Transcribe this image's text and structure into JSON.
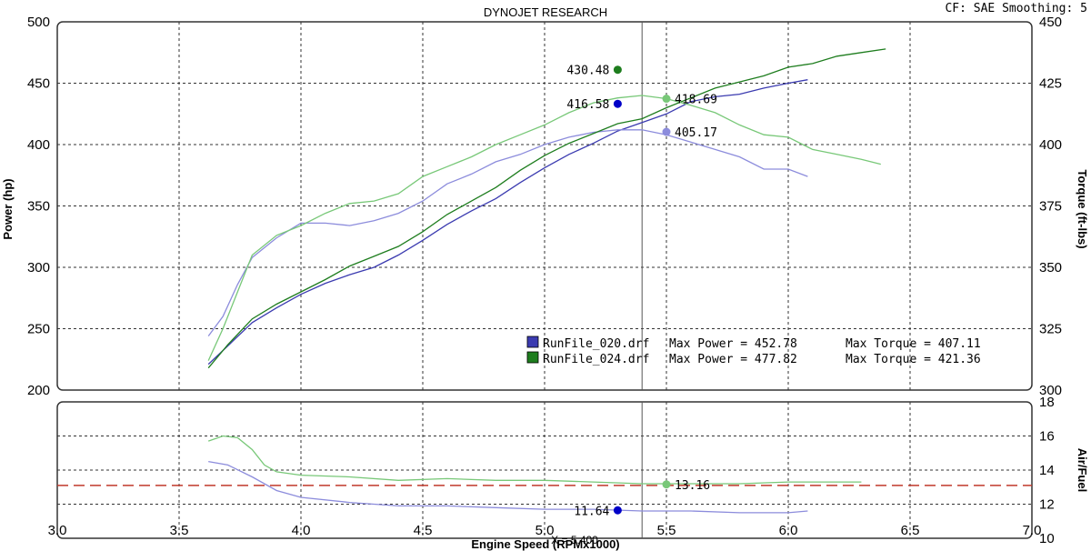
{
  "header": {
    "title": "DYNOJET RESEARCH",
    "correction": "CF: SAE  Smoothing: 5"
  },
  "colors": {
    "run020_power": "#3b3bb0",
    "run020_torque": "#8c8cdc",
    "run024_power": "#1e7d1e",
    "run024_torque": "#78c878",
    "afr_target": "#c0392b",
    "grid": "#333333"
  },
  "chart_data": [
    {
      "type": "line",
      "id": "power-torque",
      "xlabel": "Engine Speed (RPMx1000)",
      "ylabel": "Power (hp)",
      "y2label": "Torque (ft-lbs)",
      "xlim": [
        3.0,
        7.0
      ],
      "ylim": [
        200,
        500
      ],
      "y2lim": [
        300,
        450
      ],
      "xticks": [
        "3.0",
        "3.5",
        "4.0",
        "4.5",
        "5.0",
        "5.5",
        "6.0",
        "6.5",
        "7.0"
      ],
      "yticks": [
        "200",
        "250",
        "300",
        "350",
        "400",
        "450",
        "500"
      ],
      "y2ticks": [
        "300",
        "325",
        "350",
        "375",
        "400",
        "425",
        "450"
      ],
      "grid": true,
      "cursor_x": 5.4,
      "series": [
        {
          "name": "RunFile_020.drf",
          "quantity": "power",
          "axis": "y",
          "x": [
            3.62,
            3.7,
            3.8,
            3.9,
            4.0,
            4.1,
            4.2,
            4.3,
            4.4,
            4.5,
            4.6,
            4.7,
            4.8,
            4.9,
            5.0,
            5.1,
            5.2,
            5.3,
            5.4,
            5.5,
            5.6,
            5.7,
            5.8,
            5.9,
            6.0,
            6.08
          ],
          "y": [
            221,
            236,
            255,
            267,
            278,
            287,
            294,
            300,
            310,
            322,
            335,
            346,
            356,
            369,
            381,
            392,
            401,
            411,
            418,
            425,
            435,
            439,
            441,
            446,
            450,
            452.78
          ]
        },
        {
          "name": "RunFile_020.drf",
          "quantity": "torque",
          "axis": "y2",
          "x": [
            3.62,
            3.68,
            3.74,
            3.8,
            3.9,
            4.0,
            4.1,
            4.2,
            4.3,
            4.4,
            4.5,
            4.6,
            4.7,
            4.8,
            4.9,
            5.0,
            5.1,
            5.2,
            5.3,
            5.4,
            5.5,
            5.6,
            5.7,
            5.8,
            5.9,
            6.0,
            6.08
          ],
          "y": [
            322,
            330,
            343,
            354,
            362,
            368,
            368,
            367,
            369,
            372,
            377,
            384,
            388,
            393,
            396,
            400,
            403,
            405,
            406,
            406,
            404,
            401,
            398,
            395,
            390,
            390,
            387
          ]
        },
        {
          "name": "RunFile_024.drf",
          "quantity": "power",
          "axis": "y",
          "x": [
            3.62,
            3.7,
            3.8,
            3.9,
            4.0,
            4.1,
            4.2,
            4.3,
            4.4,
            4.5,
            4.6,
            4.7,
            4.8,
            4.9,
            5.0,
            5.1,
            5.2,
            5.3,
            5.4,
            5.5,
            5.6,
            5.7,
            5.8,
            5.9,
            6.0,
            6.1,
            6.2,
            6.3,
            6.4
          ],
          "y": [
            218,
            237,
            258,
            270,
            280,
            290,
            301,
            309,
            317,
            329,
            343,
            354,
            365,
            379,
            391,
            401,
            409,
            417,
            421,
            430,
            438,
            446,
            451,
            456,
            463,
            466,
            472,
            475,
            477.82
          ]
        },
        {
          "name": "RunFile_024.drf",
          "quantity": "torque",
          "axis": "y2",
          "x": [
            3.62,
            3.68,
            3.74,
            3.8,
            3.9,
            4.0,
            4.1,
            4.2,
            4.3,
            4.4,
            4.5,
            4.6,
            4.7,
            4.8,
            4.9,
            5.0,
            5.1,
            5.2,
            5.3,
            5.4,
            5.5,
            5.6,
            5.7,
            5.8,
            5.9,
            6.0,
            6.1,
            6.2,
            6.3,
            6.38
          ],
          "y": [
            312,
            325,
            340,
            355,
            363,
            367,
            372,
            376,
            377,
            380,
            387,
            391,
            395,
            400,
            404,
            408,
            413,
            417,
            419,
            420,
            418.69,
            416,
            413,
            408,
            404,
            403,
            398,
            396,
            394,
            392
          ]
        }
      ],
      "markers": [
        {
          "label": "430.48",
          "x": 5.3,
          "y2": 430.48,
          "series": "RunFile_024.drf",
          "side": "left"
        },
        {
          "label": "416.58",
          "x": 5.3,
          "y2": 416.58,
          "series": "RunFile_020.drf",
          "side": "left"
        },
        {
          "label": "418.69",
          "x": 5.5,
          "y2": 418.69,
          "series": "RunFile_024.drf",
          "side": "right"
        },
        {
          "label": "405.17",
          "x": 5.5,
          "y2": 405.17,
          "series": "RunFile_020.drf",
          "side": "right"
        }
      ],
      "legend": [
        {
          "file": "RunFile_020.drf",
          "max_power": "Max Power = 452.78",
          "max_torque": "Max Torque = 407.11"
        },
        {
          "file": "RunFile_024.drf",
          "max_power": "Max Power = 477.82",
          "max_torque": "Max Torque = 421.36"
        }
      ],
      "legend_placement": "bottom-right"
    },
    {
      "type": "line",
      "id": "air-fuel",
      "y2label": "Air/Fuel",
      "xlim": [
        3.0,
        7.0
      ],
      "y2lim": [
        10,
        18
      ],
      "y2ticks": [
        "10",
        "12",
        "14",
        "16",
        "18"
      ],
      "grid": true,
      "target_afr": 13.1,
      "cursor_label": "X = 5.400",
      "series": [
        {
          "name": "RunFile_020.drf",
          "quantity": "afr",
          "x": [
            3.62,
            3.7,
            3.8,
            3.9,
            4.0,
            4.2,
            4.4,
            4.6,
            4.8,
            5.0,
            5.2,
            5.4,
            5.6,
            5.8,
            6.0,
            6.08
          ],
          "y": [
            14.5,
            14.3,
            13.6,
            12.8,
            12.4,
            12.1,
            11.9,
            11.9,
            11.8,
            11.7,
            11.7,
            11.6,
            11.6,
            11.5,
            11.5,
            11.6
          ]
        },
        {
          "name": "RunFile_024.drf",
          "quantity": "afr",
          "x": [
            3.62,
            3.68,
            3.74,
            3.8,
            3.85,
            3.9,
            4.0,
            4.2,
            4.4,
            4.6,
            4.8,
            5.0,
            5.2,
            5.4,
            5.6,
            5.8,
            6.0,
            6.2,
            6.3
          ],
          "y": [
            15.7,
            16.0,
            15.9,
            15.2,
            14.3,
            13.9,
            13.7,
            13.6,
            13.4,
            13.5,
            13.4,
            13.4,
            13.3,
            13.2,
            13.2,
            13.2,
            13.3,
            13.3,
            13.3
          ]
        }
      ],
      "markers": [
        {
          "label": "13.16",
          "x": 5.5,
          "y2": 13.16,
          "series": "RunFile_024.drf",
          "side": "right"
        },
        {
          "label": "11.64",
          "x": 5.3,
          "y2": 11.64,
          "series": "RunFile_020.drf",
          "side": "left"
        }
      ]
    }
  ]
}
